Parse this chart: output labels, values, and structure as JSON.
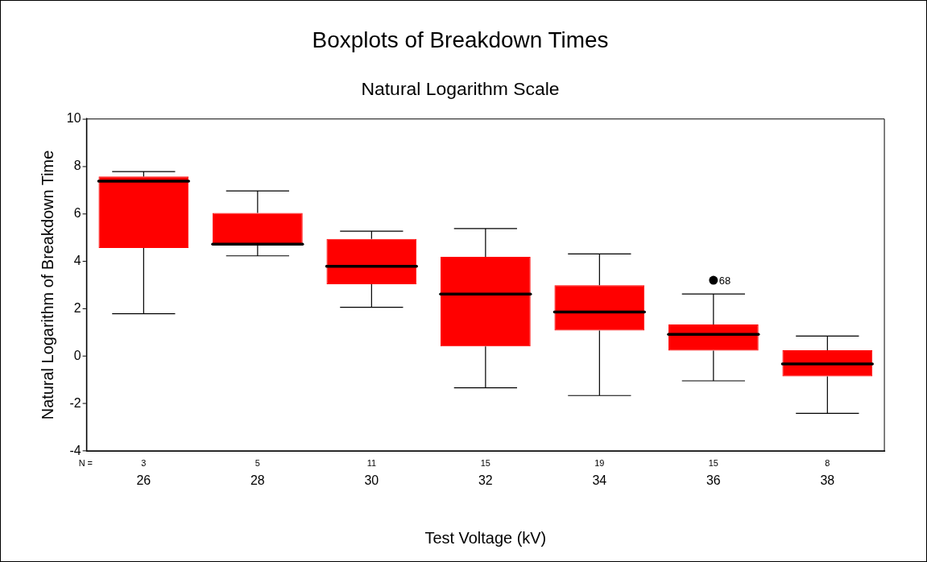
{
  "chart_data": {
    "type": "box",
    "title": "Boxplots of Breakdown Times",
    "subtitle": "Natural Logarithm Scale",
    "xlabel": "Test Voltage (kV)",
    "ylabel": "Natural Logarithm of Breakdown Time",
    "categories": [
      "26",
      "28",
      "30",
      "32",
      "34",
      "36",
      "38"
    ],
    "color": "#ff0000",
    "boxes": [
      {
        "low": 1.79,
        "q1": 4.56,
        "median": 7.38,
        "q3": 7.57,
        "high": 7.78
      },
      {
        "low": 4.23,
        "q1": 4.66,
        "median": 4.72,
        "q3": 6.04,
        "high": 6.97
      },
      {
        "low": 2.06,
        "q1": 3.03,
        "median": 3.79,
        "q3": 4.94,
        "high": 5.27
      },
      {
        "low": -1.33,
        "q1": 0.41,
        "median": 2.62,
        "q3": 4.19,
        "high": 5.38
      },
      {
        "low": -1.66,
        "q1": 1.08,
        "median": 1.86,
        "q3": 2.99,
        "high": 4.31
      },
      {
        "low": -1.04,
        "q1": 0.23,
        "median": 0.92,
        "q3": 1.34,
        "high": 2.62,
        "outliers": [
          3.2
        ]
      },
      {
        "low": -2.41,
        "q1": -0.85,
        "median": -0.33,
        "q3": 0.25,
        "high": 0.85
      }
    ],
    "ylim": [
      -4,
      10
    ],
    "yticks": [
      -4,
      -2,
      0,
      2,
      4,
      6,
      8,
      10
    ],
    "grid": false,
    "legend": false,
    "annotations": [
      "N =",
      "3",
      "5",
      "11",
      "15",
      "19",
      "15",
      "8",
      "68"
    ]
  }
}
